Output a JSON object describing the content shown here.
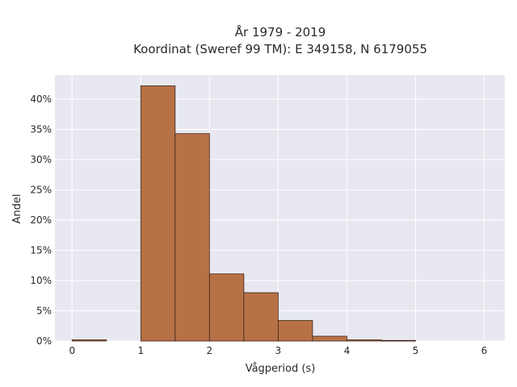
{
  "chart_data": {
    "type": "bar",
    "title_line1": "År 1979 - 2019",
    "title_line2": "Koordinat (Sweref 99 TM): E 349158, N 6179055",
    "xlabel": "Vågperiod (s)",
    "ylabel": "Andel",
    "xlim": [
      -0.25,
      6.3
    ],
    "ylim": [
      0,
      0.44
    ],
    "x_ticks": [
      0,
      1,
      2,
      3,
      4,
      5,
      6
    ],
    "x_tick_labels": [
      "0",
      "1",
      "2",
      "3",
      "4",
      "5",
      "6"
    ],
    "y_ticks": [
      0,
      0.05,
      0.1,
      0.15,
      0.2,
      0.25,
      0.3,
      0.35,
      0.4
    ],
    "y_tick_labels": [
      "0%",
      "5%",
      "10%",
      "15%",
      "20%",
      "25%",
      "30%",
      "35%",
      "40%"
    ],
    "bin_width": 0.5,
    "bins": [
      {
        "x0": 0.0,
        "x1": 0.5,
        "value": 0.002
      },
      {
        "x0": 0.5,
        "x1": 1.0,
        "value": 0.0
      },
      {
        "x0": 1.0,
        "x1": 1.5,
        "value": 0.422
      },
      {
        "x0": 1.5,
        "x1": 2.0,
        "value": 0.343
      },
      {
        "x0": 2.0,
        "x1": 2.5,
        "value": 0.111
      },
      {
        "x0": 2.5,
        "x1": 3.0,
        "value": 0.08
      },
      {
        "x0": 3.0,
        "x1": 3.5,
        "value": 0.034
      },
      {
        "x0": 3.5,
        "x1": 4.0,
        "value": 0.008
      },
      {
        "x0": 4.0,
        "x1": 4.5,
        "value": 0.002
      },
      {
        "x0": 4.5,
        "x1": 5.0,
        "value": 0.001
      }
    ],
    "grid": true,
    "legend": "none",
    "colors": {
      "bar_fill": "#b87147",
      "bar_stroke": "#3a2418",
      "plot_bg": "#e8e8f1",
      "grid": "#ffffff"
    }
  }
}
